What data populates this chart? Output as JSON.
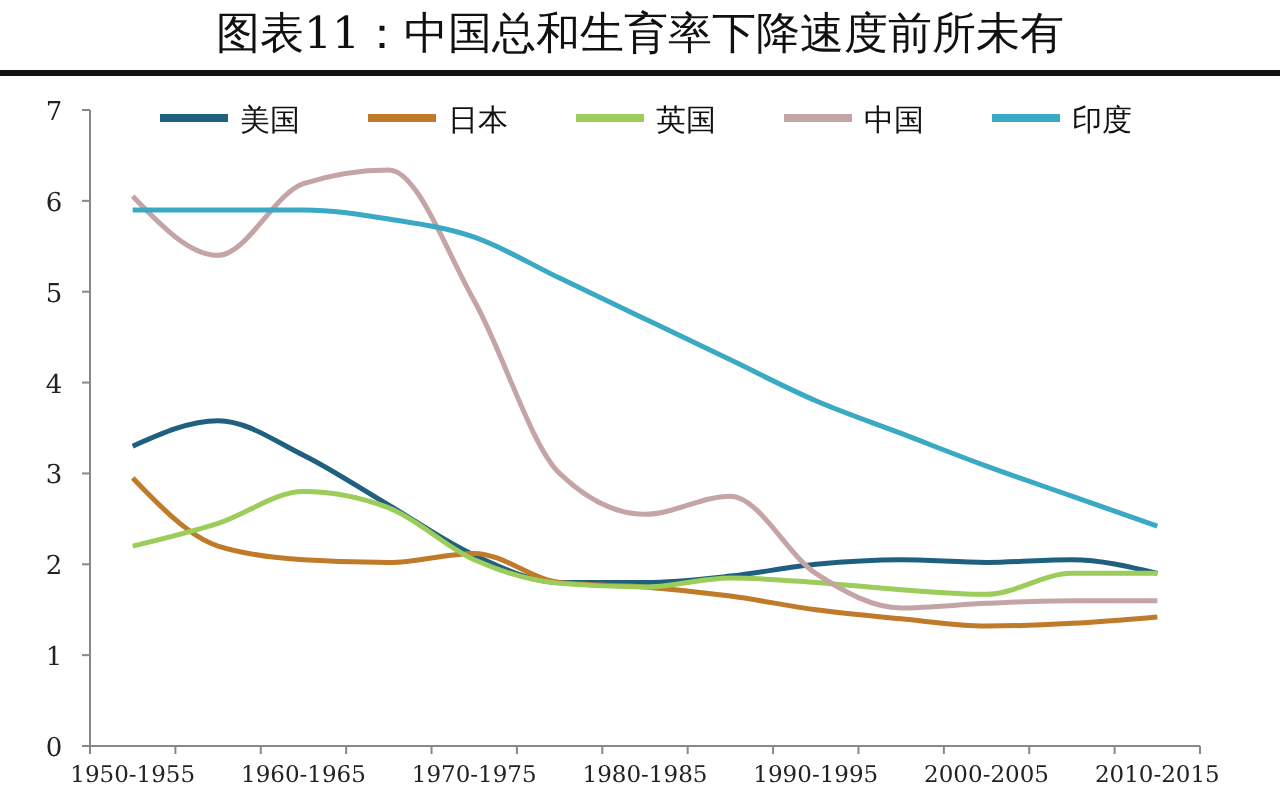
{
  "chart_data": {
    "type": "line",
    "title": "图表11：中国总和生育率下降速度前所未有",
    "categories": [
      "1950-1955",
      null,
      "1960-1965",
      null,
      "1970-1975",
      null,
      "1980-1985",
      null,
      "1990-1995",
      null,
      "2000-2005",
      null,
      "2010-2015"
    ],
    "ylim": [
      0,
      7
    ],
    "yticks": [
      0,
      1,
      2,
      3,
      4,
      5,
      6,
      7
    ],
    "grid": false,
    "legend": "top",
    "marker": "none",
    "line_style": "solid",
    "series": [
      {
        "name": "美国",
        "color": "#1f5f7f",
        "values": [
          3.3,
          3.58,
          3.2,
          2.65,
          2.1,
          1.8,
          1.8,
          1.87,
          2.0,
          2.05,
          2.02,
          2.05,
          1.9
        ]
      },
      {
        "name": "日本",
        "color": "#c07a2a",
        "values": [
          2.95,
          2.2,
          2.05,
          2.02,
          2.12,
          1.8,
          1.75,
          1.65,
          1.5,
          1.4,
          1.32,
          1.35,
          1.42
        ]
      },
      {
        "name": "英国",
        "color": "#9ccc5a",
        "values": [
          2.2,
          2.45,
          2.8,
          2.62,
          2.05,
          1.79,
          1.75,
          1.85,
          1.8,
          1.72,
          1.67,
          1.9,
          1.9
        ]
      },
      {
        "name": "中国",
        "color": "#c4a4a4",
        "values": [
          6.05,
          5.4,
          6.19,
          6.34,
          4.9,
          3.0,
          2.55,
          2.75,
          1.9,
          1.52,
          1.57,
          1.6,
          1.6
        ]
      },
      {
        "name": "印度",
        "color": "#3aa9c4",
        "values": [
          5.9,
          5.9,
          5.9,
          5.8,
          5.6,
          5.15,
          4.7,
          4.25,
          3.8,
          3.44,
          3.08,
          2.75,
          2.42
        ]
      }
    ]
  }
}
